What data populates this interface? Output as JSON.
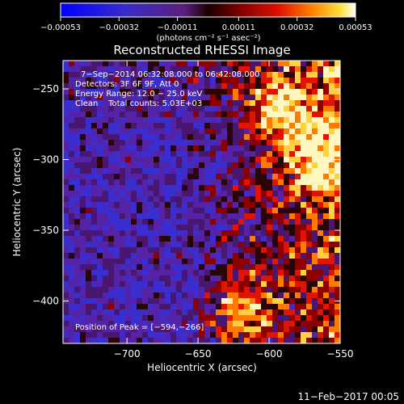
{
  "chart_data": {
    "type": "heatmap",
    "title": "Reconstructed RHESSI Image",
    "xlabel": "Heliocentric X (arcsec)",
    "ylabel": "Heliocentric Y (arcsec)",
    "x_range": [
      -745,
      -550
    ],
    "y_range": [
      -430,
      -230
    ],
    "x_ticks": [
      -700,
      -650,
      -600,
      -550
    ],
    "x_tick_labels": [
      "−700",
      "−650",
      "−600",
      "−550"
    ],
    "y_ticks": [
      -250,
      -300,
      -350,
      -400
    ],
    "y_tick_labels": [
      "−250",
      "−300",
      "−350",
      "−400"
    ],
    "colorbar": {
      "range": [
        -0.00053,
        0.00053
      ],
      "ticks": [
        -0.00053,
        -0.00032,
        -0.00011,
        0.00011,
        0.00032,
        0.00053
      ],
      "tick_labels": [
        "−0.00053",
        "−0.00032",
        "−0.00011",
        "0.00011",
        "0.00032",
        "0.00053"
      ],
      "unit_label": "(photons cm⁻² s⁻¹ asec⁻²)"
    },
    "annotations": {
      "time": "7−Sep−2014 06:32:08.000 to 06:42:08.000",
      "detectors": "Detectors: 3F 6F 9F, Att 0",
      "energy": "Energy Range: 12.0 − 25.0 keV",
      "clean": "Clean    Total counts: 5.03E+03",
      "peak": "Position of Peak = [−594,−266]"
    },
    "peak_position": [
      -594,
      -266
    ],
    "bright_regions": [
      {
        "x": -594,
        "y": -266
      },
      {
        "x": -620,
        "y": -405
      },
      {
        "x": -565,
        "y": -300
      }
    ]
  },
  "footer": {
    "date": "11−Feb−2017 00:05"
  }
}
